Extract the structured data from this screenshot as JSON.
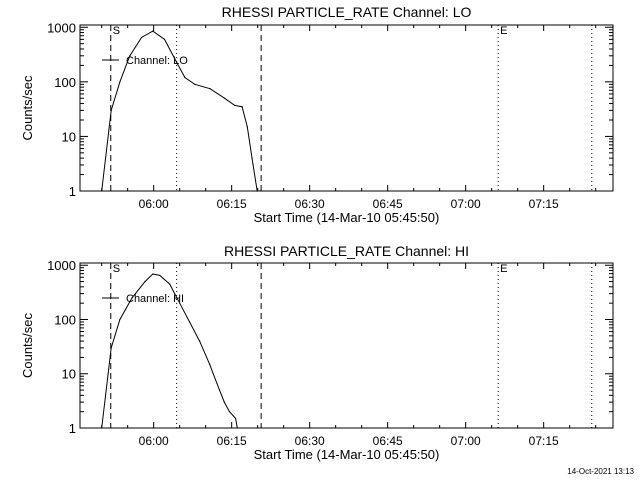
{
  "footer_timestamp": "14-Oct-2021 13:13",
  "chart_data": [
    {
      "type": "line",
      "title": "RHESSI PARTICLE_RATE Channel: LO",
      "xlabel": "Start Time (14-Mar-10 05:45:50)",
      "ylabel": "Counts/sec",
      "yscale": "log",
      "ylim": [
        1,
        1100
      ],
      "xlim": [
        "05:45:50",
        "07:28:20"
      ],
      "xticks": [
        "06:00",
        "06:15",
        "06:30",
        "06:45",
        "07:00",
        "07:15"
      ],
      "yticks": [
        "1",
        "10",
        "100",
        "1000"
      ],
      "legend": {
        "label": "Channel: LO",
        "placement": "top-left"
      },
      "markers": [
        {
          "time": "05:51:45",
          "style": "dashed",
          "label": "S"
        },
        {
          "time": "06:04:25",
          "style": "dotted",
          "label": ""
        },
        {
          "time": "06:20:40",
          "style": "dashed",
          "label": ""
        },
        {
          "time": "07:06:15",
          "style": "dotted",
          "label": "E"
        },
        {
          "time": "07:24:15",
          "style": "dotted",
          "label": ""
        }
      ],
      "series": [
        {
          "name": "LO",
          "points": [
            [
              "05:50:00",
              1
            ],
            [
              "05:51:50",
              30
            ],
            [
              "05:53:30",
              100
            ],
            [
              "05:55:25",
              300
            ],
            [
              "05:57:40",
              650
            ],
            [
              "05:59:50",
              850
            ],
            [
              "06:02:05",
              600
            ],
            [
              "06:04:30",
              220
            ],
            [
              "06:06:00",
              120
            ],
            [
              "06:07:55",
              90
            ],
            [
              "06:10:50",
              75
            ],
            [
              "06:13:40",
              50
            ],
            [
              "06:15:35",
              37
            ],
            [
              "06:17:00",
              35
            ],
            [
              "06:18:00",
              15
            ],
            [
              "06:18:55",
              4
            ],
            [
              "06:19:55",
              1
            ]
          ]
        }
      ]
    },
    {
      "type": "line",
      "title": "RHESSI PARTICLE_RATE Channel: HI",
      "xlabel": "Start Time (14-Mar-10 05:45:50)",
      "ylabel": "Counts/sec",
      "yscale": "log",
      "ylim": [
        1,
        1100
      ],
      "xlim": [
        "05:45:50",
        "07:28:20"
      ],
      "xticks": [
        "06:00",
        "06:15",
        "06:30",
        "06:45",
        "07:00",
        "07:15"
      ],
      "yticks": [
        "1",
        "10",
        "100",
        "1000"
      ],
      "legend": {
        "label": "Channel: HI",
        "placement": "top-left"
      },
      "markers": [
        {
          "time": "05:51:45",
          "style": "dashed",
          "label": "S"
        },
        {
          "time": "06:04:25",
          "style": "dotted",
          "label": ""
        },
        {
          "time": "06:20:40",
          "style": "dashed",
          "label": ""
        },
        {
          "time": "07:06:15",
          "style": "dotted",
          "label": "E"
        },
        {
          "time": "07:24:15",
          "style": "dotted",
          "label": ""
        }
      ],
      "series": [
        {
          "name": "HI",
          "points": [
            [
              "05:50:00",
              1
            ],
            [
              "05:51:50",
              30
            ],
            [
              "05:53:30",
              100
            ],
            [
              "05:55:50",
              250
            ],
            [
              "05:58:20",
              500
            ],
            [
              "05:59:50",
              690
            ],
            [
              "06:01:10",
              650
            ],
            [
              "06:03:05",
              450
            ],
            [
              "06:05:00",
              200
            ],
            [
              "06:06:55",
              90
            ],
            [
              "06:08:50",
              40
            ],
            [
              "06:10:45",
              15
            ],
            [
              "06:12:40",
              5
            ],
            [
              "06:13:35",
              3
            ],
            [
              "06:14:35",
              2
            ],
            [
              "06:15:45",
              1.5
            ],
            [
              "06:16:05",
              1
            ]
          ]
        }
      ]
    }
  ]
}
